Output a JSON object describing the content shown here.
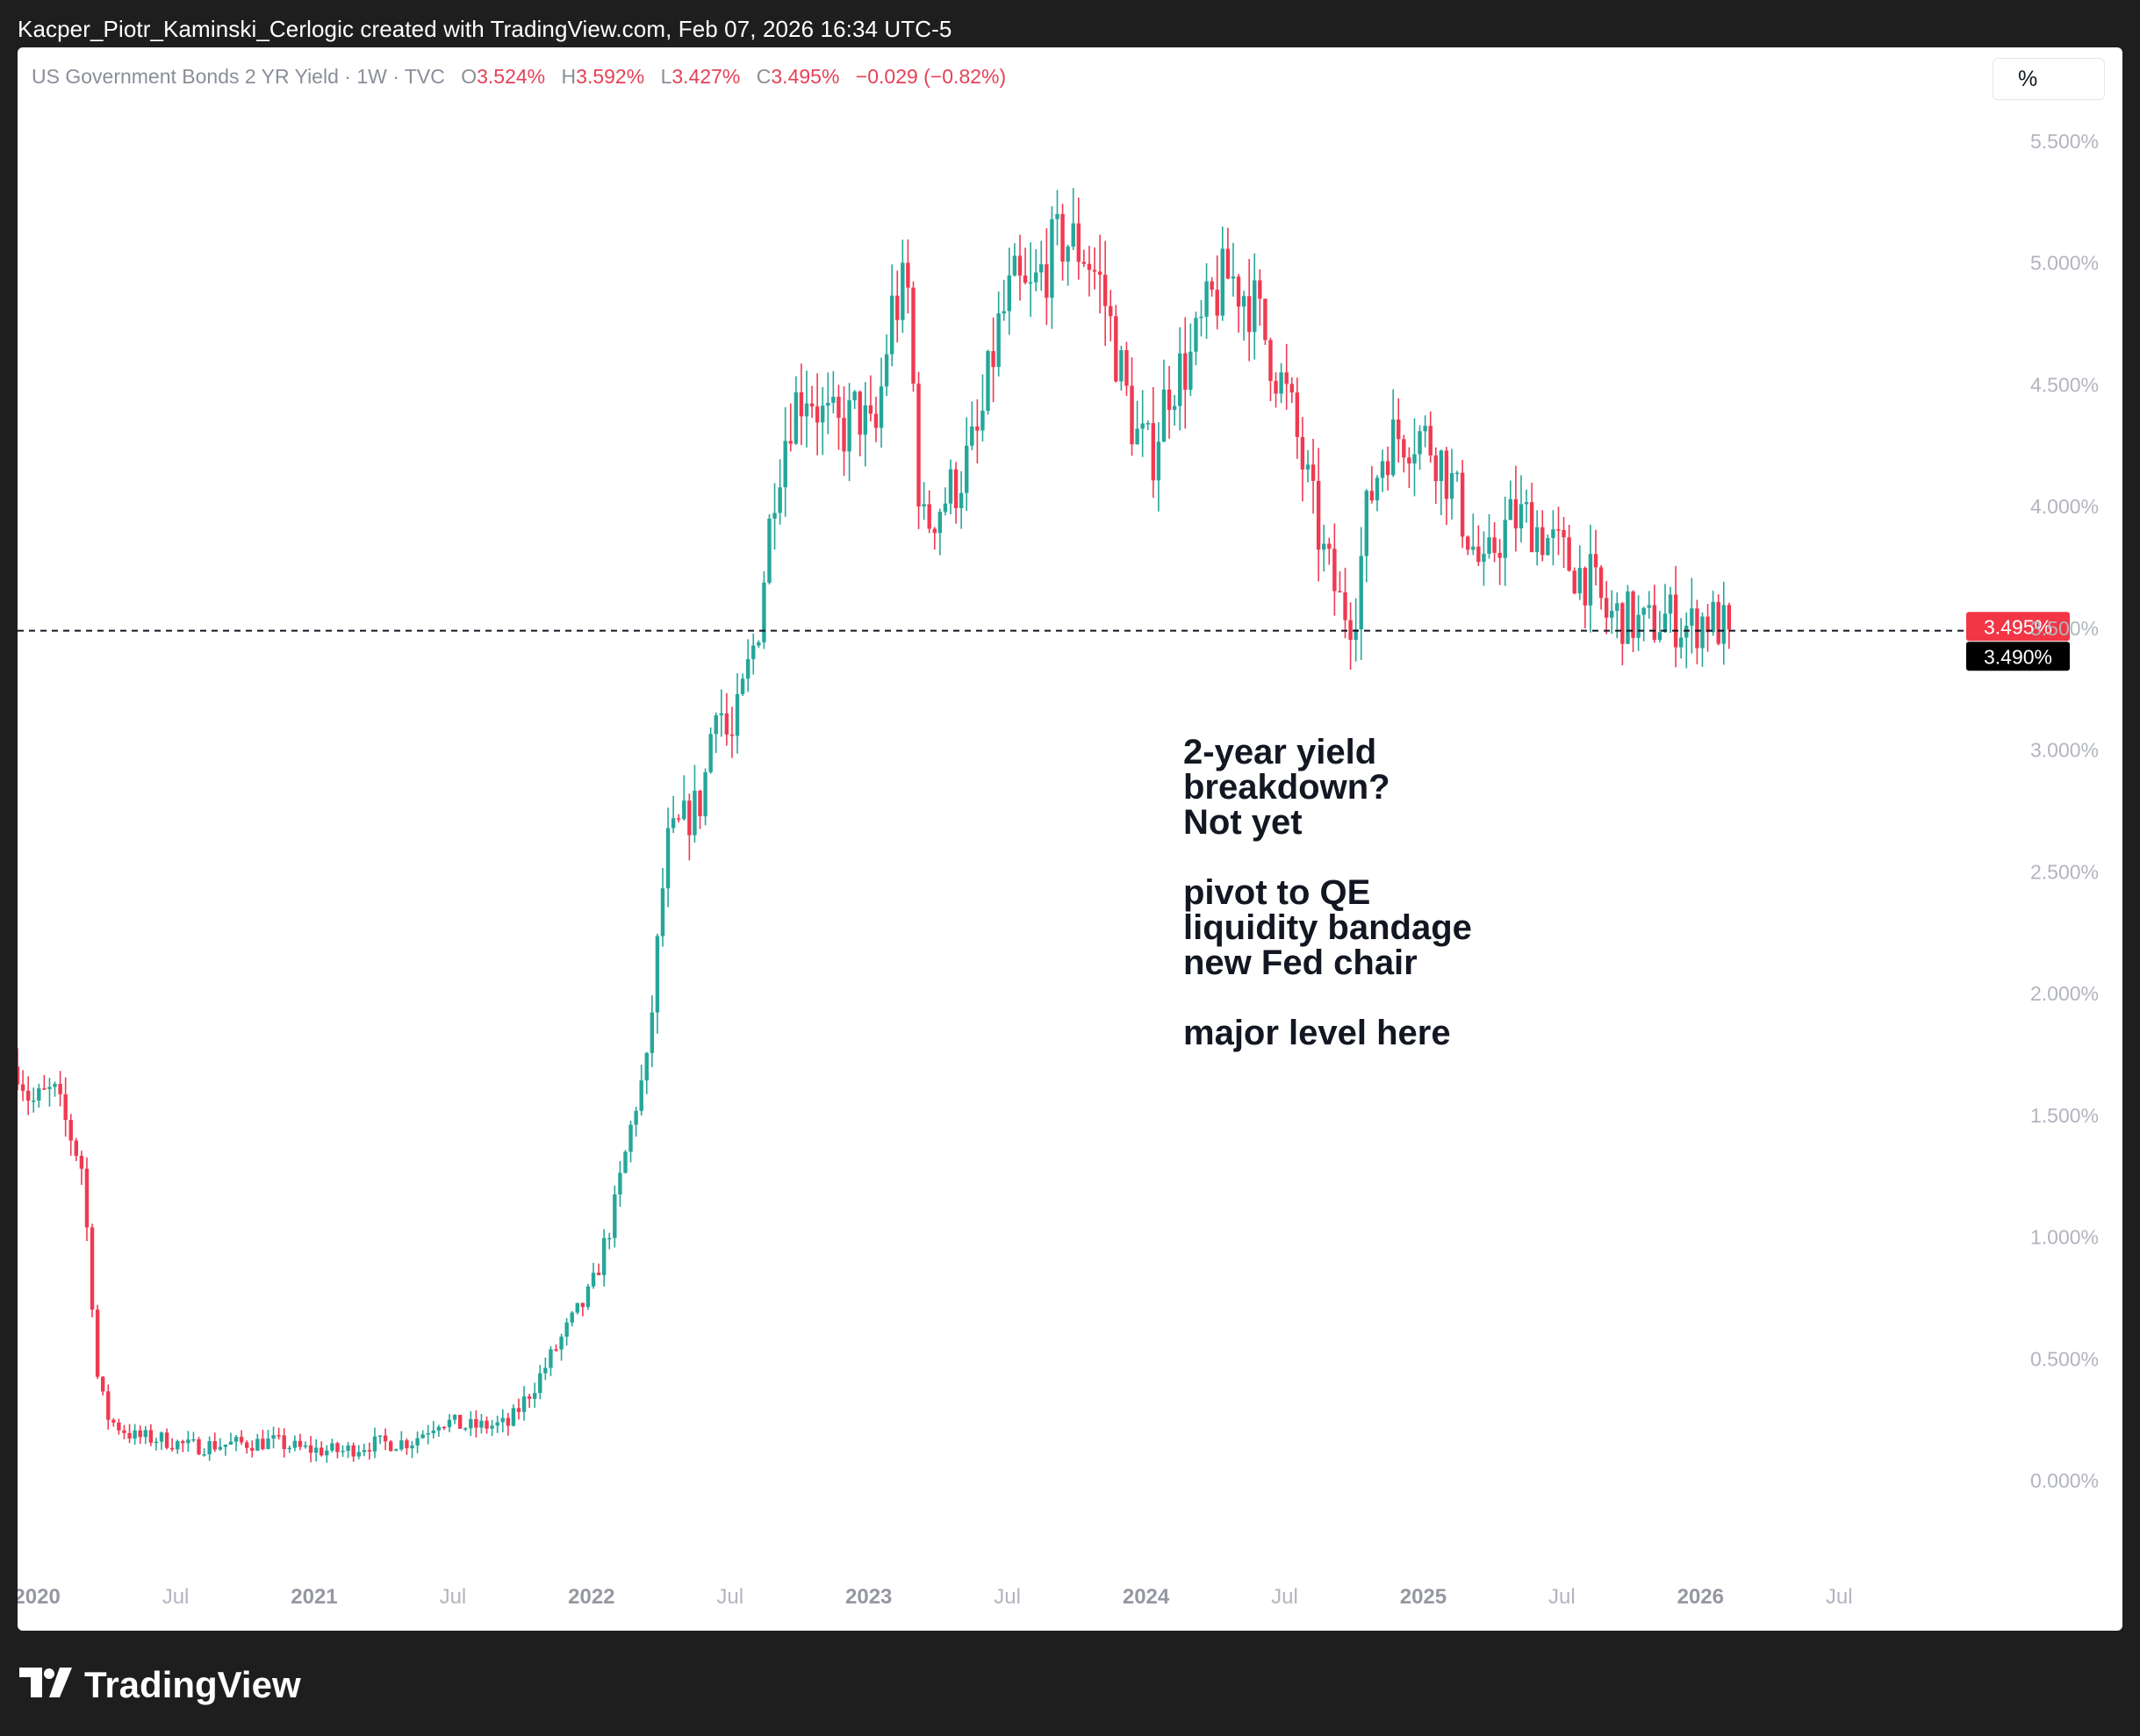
{
  "header": {
    "credit": "Kacper_Piotr_Kaminski_Cerlogic created with TradingView.com, Feb 07, 2026 16:34 UTC-5"
  },
  "legend": {
    "symbol": "US Government Bonds 2 YR Yield · 1W · TVC",
    "o_label": "O",
    "o_value": "3.524%",
    "h_label": "H",
    "h_value": "3.592%",
    "l_label": "L",
    "l_value": "3.427%",
    "c_label": "C",
    "c_value": "3.495%",
    "change": "−0.029 (−0.82%)"
  },
  "unit_button": "%",
  "annotation": {
    "lines": [
      "2-year yield",
      "breakdown?",
      "Not yet",
      "",
      "pivot to QE",
      "liquidity bandage",
      "new Fed chair",
      "",
      "major level here"
    ]
  },
  "brand": {
    "name": "TradingView"
  },
  "colors": {
    "up": "#26a69a",
    "down": "#ef3a52",
    "price_tag": "#f23645",
    "level_tag": "#000000",
    "grid_text": "#b2b5be"
  },
  "chart_data": {
    "type": "candlestick",
    "interval": "1W",
    "y_unit": "%",
    "yticks": [
      "0.000%",
      "0.500%",
      "1.000%",
      "1.500%",
      "2.000%",
      "2.500%",
      "3.000%",
      "3.500%",
      "4.000%",
      "4.500%",
      "5.000%",
      "5.500%"
    ],
    "ytick_values": [
      0.0,
      0.5,
      1.0,
      1.5,
      2.0,
      2.5,
      3.0,
      3.5,
      4.0,
      4.5,
      5.0,
      5.5
    ],
    "ylim": [
      -0.35,
      5.72
    ],
    "xlim": [
      2019.93,
      2026.99
    ],
    "xticks": [
      {
        "label": "2020",
        "t": 2020.0,
        "bold": true
      },
      {
        "label": "Jul",
        "t": 2020.5,
        "bold": false
      },
      {
        "label": "2021",
        "t": 2021.0,
        "bold": true
      },
      {
        "label": "Jul",
        "t": 2021.5,
        "bold": false
      },
      {
        "label": "2022",
        "t": 2022.0,
        "bold": true
      },
      {
        "label": "Jul",
        "t": 2022.5,
        "bold": false
      },
      {
        "label": "2023",
        "t": 2023.0,
        "bold": true
      },
      {
        "label": "Jul",
        "t": 2023.5,
        "bold": false
      },
      {
        "label": "2024",
        "t": 2024.0,
        "bold": true
      },
      {
        "label": "Jul",
        "t": 2024.5,
        "bold": false
      },
      {
        "label": "2025",
        "t": 2025.0,
        "bold": true
      },
      {
        "label": "Jul",
        "t": 2025.5,
        "bold": false
      },
      {
        "label": "2026",
        "t": 2026.0,
        "bold": true
      },
      {
        "label": "Jul",
        "t": 2026.5,
        "bold": false
      }
    ],
    "price_line": {
      "value": 3.495,
      "label": "3.495%"
    },
    "level_line": {
      "value": 3.49,
      "label": "3.490%"
    },
    "close_path": [
      [
        2019.93,
        1.7
      ],
      [
        2019.98,
        1.55
      ],
      [
        2020.06,
        1.6
      ],
      [
        2020.12,
        1.42
      ],
      [
        2020.16,
        1.3
      ],
      [
        2020.19,
        0.9
      ],
      [
        2020.22,
        0.4
      ],
      [
        2020.26,
        0.25
      ],
      [
        2020.35,
        0.18
      ],
      [
        2020.45,
        0.17
      ],
      [
        2020.55,
        0.14
      ],
      [
        2020.7,
        0.15
      ],
      [
        2020.85,
        0.16
      ],
      [
        2020.95,
        0.13
      ],
      [
        2021.1,
        0.12
      ],
      [
        2021.2,
        0.15
      ],
      [
        2021.35,
        0.16
      ],
      [
        2021.45,
        0.25
      ],
      [
        2021.55,
        0.22
      ],
      [
        2021.7,
        0.23
      ],
      [
        2021.8,
        0.4
      ],
      [
        2021.9,
        0.6
      ],
      [
        2022.0,
        0.78
      ],
      [
        2022.08,
        1.1
      ],
      [
        2022.16,
        1.55
      ],
      [
        2022.2,
        1.7
      ],
      [
        2022.27,
        2.6
      ],
      [
        2022.33,
        2.7
      ],
      [
        2022.4,
        2.8
      ],
      [
        2022.45,
        3.25
      ],
      [
        2022.5,
        3.0
      ],
      [
        2022.56,
        3.3
      ],
      [
        2022.6,
        3.5
      ],
      [
        2022.66,
        4.1
      ],
      [
        2022.72,
        4.4
      ],
      [
        2022.78,
        4.5
      ],
      [
        2022.84,
        4.35
      ],
      [
        2022.9,
        4.3
      ],
      [
        2022.96,
        4.4
      ],
      [
        2023.02,
        4.25
      ],
      [
        2023.08,
        4.8
      ],
      [
        2023.14,
        4.9
      ],
      [
        2023.19,
        3.9
      ],
      [
        2023.25,
        4.0
      ],
      [
        2023.32,
        4.1
      ],
      [
        2023.4,
        4.3
      ],
      [
        2023.46,
        4.7
      ],
      [
        2023.52,
        4.9
      ],
      [
        2023.58,
        4.85
      ],
      [
        2023.64,
        5.0
      ],
      [
        2023.7,
        5.1
      ],
      [
        2023.78,
        5.05
      ],
      [
        2023.84,
        4.9
      ],
      [
        2023.9,
        4.6
      ],
      [
        2023.96,
        4.3
      ],
      [
        2024.02,
        4.2
      ],
      [
        2024.08,
        4.5
      ],
      [
        2024.16,
        4.6
      ],
      [
        2024.24,
        4.85
      ],
      [
        2024.3,
        4.95
      ],
      [
        2024.38,
        4.85
      ],
      [
        2024.46,
        4.6
      ],
      [
        2024.52,
        4.4
      ],
      [
        2024.58,
        4.1
      ],
      [
        2024.64,
        3.8
      ],
      [
        2024.7,
        3.6
      ],
      [
        2024.75,
        3.55
      ],
      [
        2024.8,
        4.0
      ],
      [
        2024.86,
        4.25
      ],
      [
        2024.92,
        4.3
      ],
      [
        2024.98,
        4.3
      ],
      [
        2025.04,
        4.25
      ],
      [
        2025.1,
        4.1
      ],
      [
        2025.16,
        3.9
      ],
      [
        2025.22,
        3.7
      ],
      [
        2025.26,
        3.85
      ],
      [
        2025.32,
        3.95
      ],
      [
        2025.38,
        3.95
      ],
      [
        2025.46,
        3.85
      ],
      [
        2025.54,
        3.75
      ],
      [
        2025.6,
        3.7
      ],
      [
        2025.66,
        3.55
      ],
      [
        2025.72,
        3.55
      ],
      [
        2025.8,
        3.5
      ],
      [
        2025.88,
        3.55
      ],
      [
        2025.96,
        3.5
      ],
      [
        2026.02,
        3.55
      ],
      [
        2026.08,
        3.5
      ],
      [
        2026.1,
        3.495
      ]
    ]
  }
}
